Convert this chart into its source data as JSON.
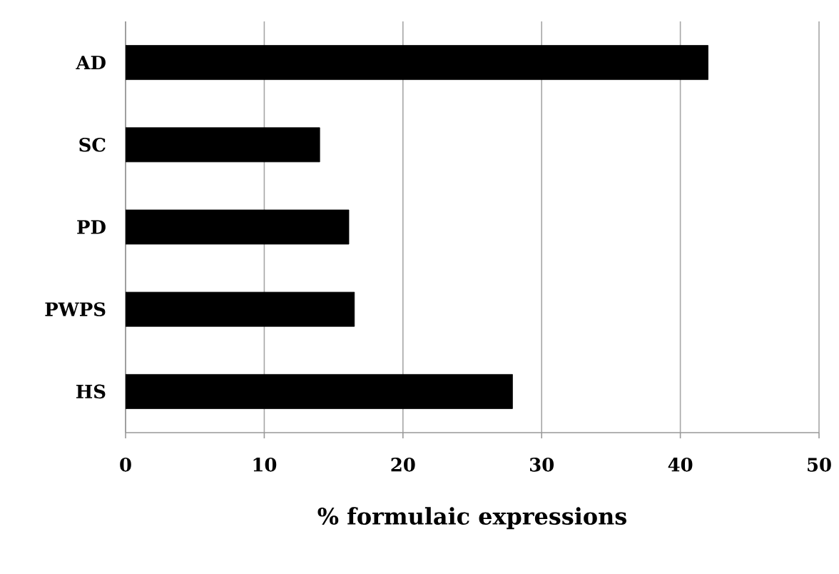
{
  "chart_data": {
    "type": "bar",
    "orientation": "horizontal",
    "xlabel": "% formulaic expressions",
    "categories": [
      "AD",
      "SC",
      "PD",
      "PWPS",
      "HS"
    ],
    "values": [
      42,
      14,
      16.1,
      16.5,
      27.9
    ],
    "color": "#000000",
    "xlim": [
      0,
      50
    ],
    "xticks": [
      0,
      10,
      20,
      30,
      40,
      50
    ],
    "grid": "x"
  }
}
